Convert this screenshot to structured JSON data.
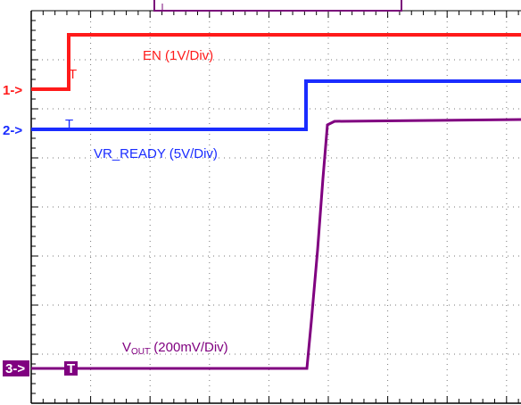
{
  "labels": {
    "en": "EN (1V/Div)",
    "vr_ready": "VR_READY (5V/Div)",
    "vout_main": "V",
    "vout_sub": "OUT",
    "vout_rest": " (200mV/Div)"
  },
  "markers": [
    "1->",
    "2->",
    "3->"
  ],
  "trigger": "T"
}
